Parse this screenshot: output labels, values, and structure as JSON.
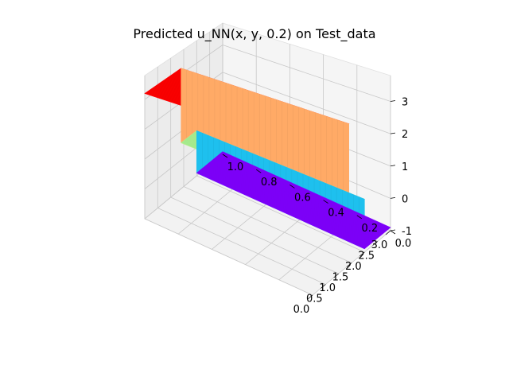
{
  "chart_data": {
    "type": "surface3d",
    "title": "Predicted u_NN(x, y, 0.2) on Test_data",
    "xlabel": "",
    "ylabel": "",
    "zlabel": "",
    "x_ticks": [
      "0.0",
      "0.5",
      "1.0",
      "1.5",
      "2.0",
      "2.5",
      "3.0"
    ],
    "y_ticks": [
      "0.0",
      "0.2",
      "0.4",
      "0.6",
      "0.8",
      "1.0"
    ],
    "z_ticks": [
      "-1",
      "0",
      "1",
      "2",
      "3"
    ],
    "xlim": [
      0,
      3
    ],
    "ylim": [
      0,
      1
    ],
    "zlim": [
      -1,
      3.8
    ],
    "grid": true,
    "colormap": "rainbow",
    "segments": [
      {
        "x_start": 0.0,
        "x_end": 1.4,
        "u": 3.2,
        "color": "#ff0000"
      },
      {
        "x_start": 1.4,
        "x_end": 2.0,
        "u": 0.6,
        "color": "#b0f896"
      },
      {
        "x_start": 2.0,
        "x_end": 3.0,
        "u": -0.9,
        "color": "#8000ff"
      }
    ],
    "wall_colors": [
      "#ffaa66",
      "#1ec0ee"
    ]
  }
}
